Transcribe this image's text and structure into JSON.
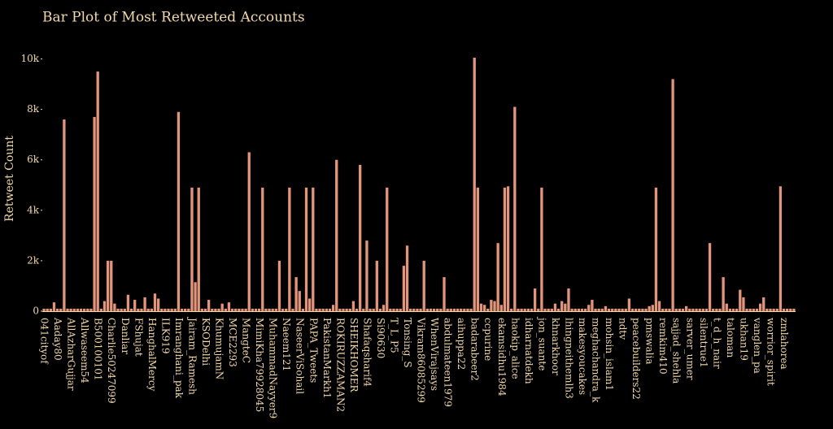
{
  "chart_data": {
    "type": "bar",
    "title": "Bar Plot of Most Retweeted Accounts",
    "y_label": "Retweet Count",
    "color": "#e3957c",
    "ylim": [
      0,
      10500
    ],
    "yticks": [
      0,
      {
        "value": 2000,
        "label": "2k"
      },
      {
        "value": 4000,
        "label": "4k"
      },
      {
        "value": 6000,
        "label": "6k"
      },
      {
        "value": 8000,
        "label": "8k"
      },
      {
        "value": 10000,
        "label": "10k"
      }
    ],
    "categories": [
      "041cityof",
      null,
      null,
      null,
      "Aaday80",
      null,
      null,
      null,
      "AllAzharGujjar",
      null,
      null,
      null,
      "Allwaseem54",
      null,
      null,
      null,
      "B500100101",
      null,
      null,
      null,
      "Charlie50247099",
      null,
      null,
      null,
      "Danliar",
      null,
      null,
      null,
      "FShujat",
      null,
      null,
      null,
      "HanghalMercy",
      null,
      null,
      null,
      "ILK919",
      null,
      null,
      null,
      "Imranghani_pak",
      null,
      null,
      null,
      "Jairam_Ramesh",
      null,
      null,
      null,
      "KSODelhi",
      null,
      null,
      null,
      "KhumujamN",
      null,
      null,
      null,
      "MCE2293",
      null,
      null,
      null,
      "MangteC",
      null,
      null,
      null,
      "MimiKha79928045",
      null,
      null,
      null,
      "MuhammadNayyer9",
      null,
      null,
      null,
      "Naeem121",
      null,
      null,
      null,
      "NaseerViSohail",
      null,
      null,
      null,
      "PAPA_Tweets",
      null,
      null,
      null,
      "PakistanMarkh1",
      null,
      null,
      null,
      "ROKIRUZZAMAN2",
      null,
      null,
      null,
      "SHEIKHOMER",
      null,
      null,
      null,
      "Shafaqsharif4",
      null,
      null,
      null,
      "Si90630",
      null,
      null,
      null,
      "T_L_P5",
      null,
      null,
      null,
      "Tonsing_S",
      null,
      null,
      null,
      "Vikram86085299",
      null,
      null,
      null,
      "WhenVirajsays",
      null,
      null,
      null,
      "abdulmateen1979",
      null,
      null,
      null,
      "aihuppa22",
      null,
      null,
      null,
      "badarabeer2",
      null,
      null,
      null,
      "ccpurine",
      null,
      null,
      null,
      "ekamsidhu1984",
      null,
      null,
      null,
      "haokip_alice",
      null,
      null,
      null,
      "idharnatdekh",
      null,
      null,
      null,
      "jon_suante",
      null,
      null,
      null,
      "khnarkhoor",
      null,
      null,
      null,
      "lhingneithemlh3",
      null,
      null,
      null,
      "makesyoucakes",
      null,
      null,
      null,
      "meghachandra_k",
      null,
      null,
      null,
      "mohsin_islam1",
      null,
      null,
      null,
      "ndtv",
      null,
      null,
      null,
      "peacebuilders22",
      null,
      null,
      null,
      "pmswalia",
      null,
      null,
      null,
      "remkim410",
      null,
      null,
      null,
      "sajjad_shehla",
      null,
      null,
      null,
      "sarver_umer",
      null,
      null,
      null,
      "silentrue1",
      null,
      null,
      null,
      "t_d_h_nair",
      null,
      null,
      null,
      "taloman",
      null,
      null,
      null,
      "ukhan19",
      null,
      null,
      null,
      "vanglen_pa",
      null,
      null,
      null,
      "worrior_spirit",
      null,
      null,
      null,
      "zmlahorea",
      null,
      null,
      null
    ],
    "values": [
      100,
      100,
      100,
      350,
      100,
      100,
      7600,
      100,
      100,
      100,
      100,
      100,
      100,
      100,
      100,
      7700,
      9500,
      100,
      400,
      2000,
      2000,
      300,
      100,
      100,
      100,
      650,
      100,
      450,
      100,
      100,
      550,
      100,
      100,
      700,
      500,
      100,
      100,
      100,
      100,
      100,
      7900,
      100,
      100,
      100,
      4900,
      1150,
      4900,
      100,
      100,
      450,
      100,
      100,
      100,
      300,
      100,
      350,
      100,
      100,
      100,
      100,
      100,
      6300,
      100,
      100,
      100,
      4900,
      100,
      100,
      100,
      100,
      2000,
      100,
      100,
      4900,
      100,
      1350,
      800,
      100,
      4900,
      500,
      4900,
      100,
      100,
      100,
      100,
      100,
      250,
      6000,
      100,
      100,
      100,
      100,
      400,
      100,
      5800,
      100,
      2800,
      100,
      100,
      2000,
      100,
      250,
      4900,
      100,
      100,
      100,
      100,
      1800,
      2600,
      100,
      100,
      100,
      100,
      2000,
      100,
      100,
      100,
      100,
      100,
      1350,
      100,
      100,
      100,
      100,
      100,
      100,
      100,
      100,
      10050,
      4900,
      300,
      250,
      100,
      450,
      400,
      2700,
      250,
      4900,
      4950,
      100,
      8100,
      100,
      100,
      100,
      100,
      100,
      900,
      100,
      4900,
      100,
      100,
      100,
      300,
      100,
      400,
      300,
      900,
      100,
      100,
      100,
      100,
      100,
      250,
      450,
      100,
      100,
      100,
      200,
      100,
      100,
      100,
      100,
      100,
      100,
      500,
      100,
      100,
      100,
      100,
      100,
      200,
      250,
      4900,
      400,
      100,
      100,
      100,
      9200,
      100,
      100,
      100,
      200,
      100,
      100,
      100,
      100,
      100,
      100,
      2700,
      100,
      100,
      100,
      1350,
      300,
      100,
      100,
      100,
      850,
      550,
      100,
      100,
      100,
      100,
      300,
      550,
      100,
      100,
      100,
      100,
      4950,
      100,
      100,
      100,
      100
    ]
  }
}
